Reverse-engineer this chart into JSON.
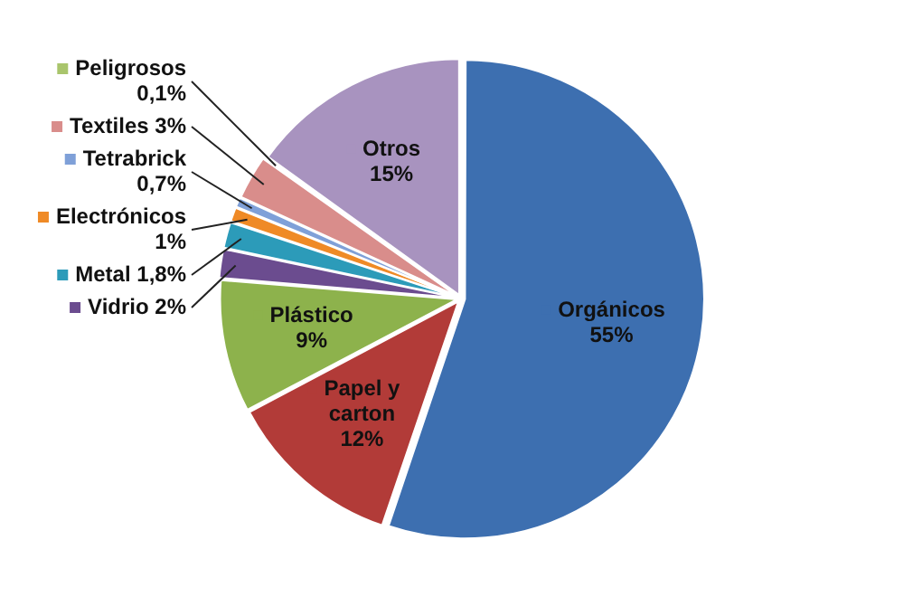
{
  "chart_data": {
    "type": "pie",
    "categories": [
      "Orgánicos",
      "Papel y carton",
      "Plástico",
      "Vidrio",
      "Metal",
      "Electrónicos",
      "Tetrabrick",
      "Textiles",
      "Peligrosos",
      "Otros"
    ],
    "values": [
      55,
      12,
      9,
      2,
      1.8,
      1,
      0.7,
      3,
      0.1,
      15
    ],
    "value_labels": [
      "55%",
      "12%",
      "9%",
      "2%",
      "1,8%",
      "1%",
      "0,7%",
      "3%",
      "0,1%",
      "15%"
    ],
    "colors": [
      "#3d6fb0",
      "#b23b38",
      "#8db24c",
      "#6b4c8f",
      "#2c9bb9",
      "#ef8a26",
      "#7fa0d8",
      "#d98d8b",
      "#a9c56c",
      "#a893bf"
    ],
    "legend": "left"
  }
}
